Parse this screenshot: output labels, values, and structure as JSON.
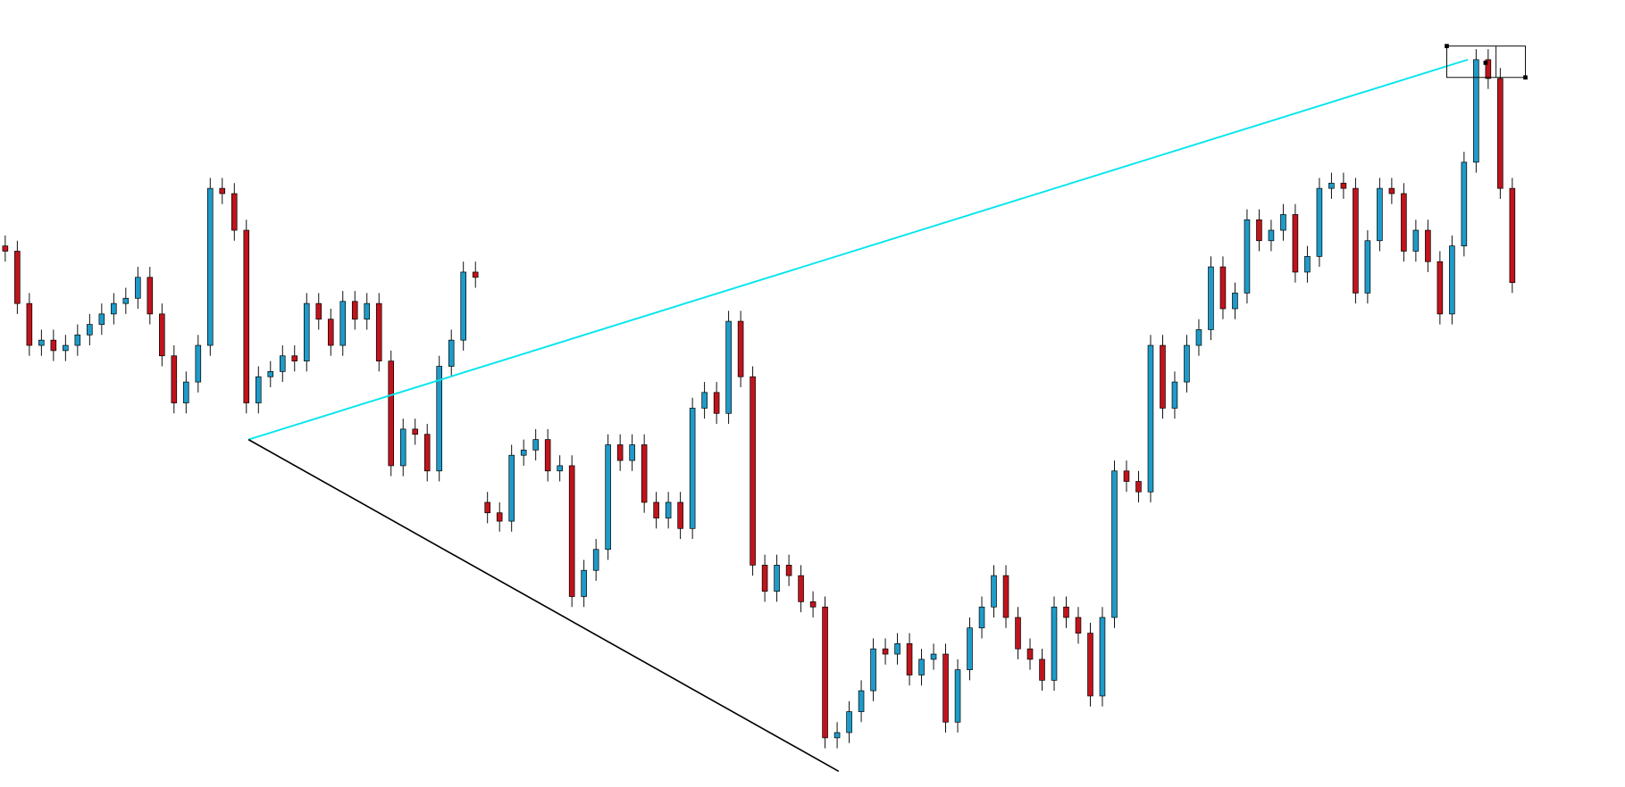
{
  "chart_data": {
    "type": "candlestick",
    "up_color": "#1e9bc8",
    "down_color": "#c0141c",
    "ylim": [
      0,
      752
    ],
    "open": [
      517,
      512,
      462,
      422,
      427,
      417,
      422,
      432,
      442,
      452,
      462,
      467,
      487,
      452,
      412,
      367,
      387,
      422,
      572,
      567,
      532,
      367,
      392,
      397,
      412,
      407,
      462,
      447,
      422,
      464,
      447,
      462,
      407,
      307,
      342,
      337,
      302,
      402,
      427,
      492,
      272,
      262,
      254,
      317,
      322,
      332,
      302,
      307,
      182,
      207,
      227,
      327,
      312,
      327,
      272,
      257,
      272,
      247,
      362,
      377,
      357,
      445,
      392,
      212,
      187,
      212,
      202,
      177,
      172,
      47,
      52,
      72,
      92,
      132,
      127,
      137,
      107,
      122,
      127,
      62,
      112,
      152,
      172,
      202,
      162,
      132,
      122,
      102,
      172,
      162,
      147,
      87,
      162,
      302,
      292,
      282,
      422,
      362,
      387,
      422,
      437,
      497,
      457,
      472,
      542,
      522,
      532,
      547,
      492,
      507,
      572,
      577,
      572,
      472,
      522,
      572,
      567,
      512,
      532,
      502,
      452,
      517,
      597,
      695,
      677,
      572
    ],
    "high": [
      527,
      522,
      472,
      437,
      437,
      432,
      442,
      452,
      462,
      472,
      477,
      497,
      497,
      462,
      422,
      397,
      432,
      582,
      582,
      577,
      542,
      402,
      407,
      422,
      422,
      472,
      472,
      457,
      474,
      474,
      472,
      472,
      417,
      352,
      352,
      347,
      412,
      437,
      502,
      502,
      282,
      272,
      327,
      332,
      342,
      342,
      317,
      317,
      217,
      237,
      337,
      337,
      337,
      337,
      282,
      282,
      282,
      372,
      387,
      387,
      455,
      455,
      402,
      222,
      222,
      222,
      212,
      187,
      182,
      62,
      82,
      102,
      142,
      142,
      147,
      147,
      132,
      137,
      137,
      122,
      162,
      182,
      212,
      212,
      172,
      142,
      132,
      182,
      182,
      172,
      157,
      172,
      312,
      312,
      302,
      432,
      432,
      397,
      432,
      447,
      507,
      507,
      482,
      552,
      552,
      542,
      557,
      557,
      517,
      582,
      587,
      587,
      582,
      532,
      582,
      582,
      577,
      542,
      542,
      512,
      527,
      607,
      705,
      705,
      687,
      582
    ],
    "low": [
      502,
      452,
      412,
      412,
      407,
      407,
      412,
      422,
      432,
      442,
      452,
      457,
      442,
      402,
      357,
      357,
      377,
      412,
      557,
      522,
      357,
      357,
      382,
      387,
      397,
      397,
      437,
      412,
      412,
      437,
      437,
      397,
      297,
      297,
      327,
      292,
      292,
      392,
      417,
      477,
      252,
      244,
      244,
      307,
      312,
      292,
      292,
      172,
      172,
      197,
      217,
      302,
      302,
      262,
      247,
      247,
      237,
      237,
      352,
      347,
      347,
      382,
      202,
      177,
      177,
      192,
      167,
      162,
      37,
      37,
      42,
      62,
      82,
      117,
      117,
      97,
      97,
      112,
      52,
      52,
      102,
      142,
      162,
      152,
      122,
      112,
      92,
      92,
      152,
      137,
      77,
      77,
      152,
      282,
      272,
      272,
      352,
      352,
      377,
      412,
      427,
      447,
      447,
      462,
      512,
      512,
      522,
      482,
      482,
      497,
      562,
      562,
      462,
      462,
      512,
      557,
      502,
      502,
      492,
      442,
      442,
      507,
      587,
      667,
      562,
      472
    ],
    "close": [
      512,
      462,
      422,
      427,
      417,
      422,
      432,
      442,
      452,
      462,
      467,
      487,
      452,
      412,
      367,
      387,
      422,
      572,
      567,
      532,
      367,
      392,
      397,
      412,
      407,
      462,
      447,
      422,
      464,
      447,
      462,
      407,
      307,
      342,
      337,
      302,
      402,
      427,
      492,
      487,
      262,
      254,
      317,
      322,
      332,
      302,
      307,
      182,
      207,
      227,
      327,
      312,
      327,
      272,
      257,
      272,
      247,
      362,
      377,
      357,
      445,
      392,
      212,
      187,
      212,
      202,
      177,
      172,
      47,
      52,
      72,
      92,
      132,
      127,
      137,
      107,
      122,
      127,
      62,
      112,
      152,
      172,
      202,
      162,
      132,
      122,
      102,
      172,
      162,
      147,
      87,
      162,
      302,
      292,
      282,
      422,
      362,
      387,
      422,
      437,
      497,
      457,
      472,
      542,
      522,
      532,
      547,
      492,
      507,
      572,
      577,
      572,
      472,
      522,
      572,
      567,
      512,
      532,
      502,
      452,
      517,
      597,
      695,
      677,
      572,
      482
    ]
  }
}
